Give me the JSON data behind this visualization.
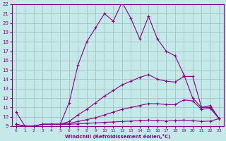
{
  "xlabel": "Windchill (Refroidissement éolien,°C)",
  "bg_color": "#c5e8e8",
  "grid_color": "#9dbdbd",
  "line_color": "#880088",
  "xlim": [
    -0.5,
    23.5
  ],
  "ylim": [
    9,
    22
  ],
  "xticks": [
    0,
    1,
    2,
    3,
    4,
    5,
    6,
    7,
    8,
    9,
    10,
    11,
    12,
    13,
    14,
    15,
    16,
    17,
    18,
    19,
    20,
    21,
    22,
    23
  ],
  "yticks": [
    9,
    10,
    11,
    12,
    13,
    14,
    15,
    16,
    17,
    18,
    19,
    20,
    21,
    22
  ],
  "line1_x": [
    0,
    1,
    2,
    3,
    4,
    5,
    6,
    7,
    8,
    9,
    10,
    11,
    12,
    13,
    14,
    15,
    16,
    17,
    18,
    19,
    20,
    21,
    22,
    23
  ],
  "line1_y": [
    10.5,
    9.0,
    9.0,
    9.2,
    9.2,
    9.2,
    11.5,
    15.5,
    18.0,
    19.5,
    21.0,
    20.2,
    22.2,
    20.5,
    18.3,
    20.7,
    18.3,
    17.0,
    16.5,
    14.5,
    12.0,
    11.0,
    11.2,
    9.8
  ],
  "line2_x": [
    0,
    1,
    2,
    3,
    4,
    5,
    6,
    7,
    8,
    9,
    10,
    11,
    12,
    13,
    14,
    15,
    16,
    17,
    18,
    19,
    20,
    21,
    22,
    23
  ],
  "line2_y": [
    9.2,
    9.0,
    9.0,
    9.2,
    9.2,
    9.2,
    9.5,
    10.2,
    10.8,
    11.5,
    12.2,
    12.8,
    13.4,
    13.8,
    14.2,
    14.5,
    14.0,
    13.8,
    13.7,
    14.3,
    14.3,
    11.0,
    11.0,
    9.8
  ],
  "line3_x": [
    0,
    1,
    2,
    3,
    4,
    5,
    6,
    7,
    8,
    9,
    10,
    11,
    12,
    13,
    14,
    15,
    16,
    17,
    18,
    19,
    20,
    21,
    22,
    23
  ],
  "line3_y": [
    9.2,
    9.0,
    9.0,
    9.2,
    9.2,
    9.2,
    9.3,
    9.5,
    9.7,
    9.9,
    10.2,
    10.5,
    10.8,
    11.0,
    11.2,
    11.4,
    11.4,
    11.3,
    11.3,
    11.8,
    11.7,
    10.8,
    10.9,
    9.8
  ],
  "line4_x": [
    0,
    1,
    2,
    3,
    4,
    5,
    6,
    7,
    8,
    9,
    10,
    11,
    12,
    13,
    14,
    15,
    16,
    17,
    18,
    19,
    20,
    21,
    22,
    23
  ],
  "line4_y": [
    9.2,
    9.0,
    9.0,
    9.2,
    9.2,
    9.2,
    9.2,
    9.25,
    9.3,
    9.35,
    9.4,
    9.45,
    9.5,
    9.55,
    9.6,
    9.65,
    9.6,
    9.55,
    9.6,
    9.65,
    9.6,
    9.5,
    9.55,
    9.8
  ]
}
